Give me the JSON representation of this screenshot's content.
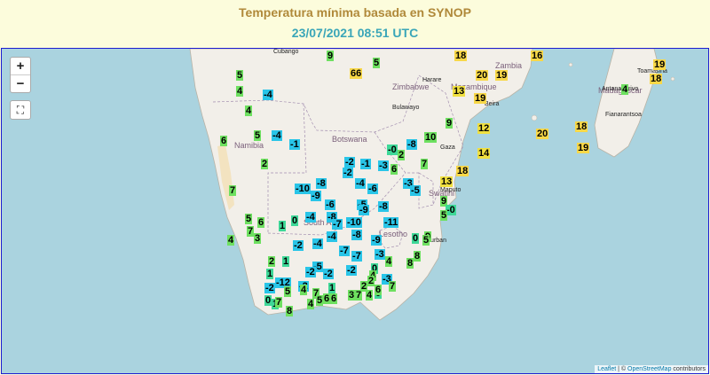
{
  "header": {
    "title": "Temperatura mínima basada en SYNOP",
    "datetime": "23/07/2021 08:51 UTC"
  },
  "controls": {
    "zoom_in": "+",
    "zoom_out": "−",
    "fullscreen": "⛶"
  },
  "attribution": {
    "leaflet": "Leaflet",
    "sep": " | © ",
    "osm": "OpenStreetMap",
    "suffix": " contributors"
  },
  "map_labels": {
    "countries": [
      "Namibia",
      "Botswana",
      "Zimbabwe",
      "South Afr",
      "Lesotho",
      "Swatini",
      "Madagascar",
      "Mozambique",
      "Zambia"
    ],
    "cities": [
      "Cubango",
      "Harare",
      "Bulawayo",
      "Beira",
      "Maputo",
      "Durban",
      "Gaza",
      "Toamasina",
      "Fianarantsoa",
      "Antananarivo"
    ]
  },
  "colors": {
    "cold": "#29c5e8",
    "cool": "#3ed898",
    "mild": "#6ee060",
    "warm": "#f0e040",
    "hot": "#f8d848"
  },
  "stations": [
    {
      "v": "9"
    },
    {
      "v": "5"
    },
    {
      "v": "66"
    },
    {
      "v": "18"
    },
    {
      "v": "16"
    },
    {
      "v": "19"
    },
    {
      "v": "20"
    },
    {
      "v": "19"
    },
    {
      "v": "18"
    },
    {
      "v": "5"
    },
    {
      "v": "4"
    },
    {
      "v": "-4"
    },
    {
      "v": "4"
    },
    {
      "v": "13"
    },
    {
      "v": "19"
    },
    {
      "v": "4"
    },
    {
      "v": "5"
    },
    {
      "v": "-4"
    },
    {
      "v": "-1"
    },
    {
      "v": "6"
    },
    {
      "v": "9"
    },
    {
      "v": "12"
    },
    {
      "v": "20"
    },
    {
      "v": "18"
    },
    {
      "v": "19"
    },
    {
      "v": "10"
    },
    {
      "v": "-8"
    },
    {
      "v": "-0"
    },
    {
      "v": "2"
    },
    {
      "v": "14"
    },
    {
      "v": "-2"
    },
    {
      "v": "-1"
    },
    {
      "v": "-3"
    },
    {
      "v": "6"
    },
    {
      "v": "7"
    },
    {
      "v": "18"
    },
    {
      "v": "2"
    },
    {
      "v": "-2"
    },
    {
      "v": "7"
    },
    {
      "v": "-10"
    },
    {
      "v": "-8"
    },
    {
      "v": "-9"
    },
    {
      "v": "-4"
    },
    {
      "v": "-6"
    },
    {
      "v": "-3"
    },
    {
      "v": "13"
    },
    {
      "v": "-5"
    },
    {
      "v": "9"
    },
    {
      "v": "-6"
    },
    {
      "v": "-5"
    },
    {
      "v": "-9"
    },
    {
      "v": "-8"
    },
    {
      "v": "-0"
    },
    {
      "v": "5"
    },
    {
      "v": "5"
    },
    {
      "v": "6"
    },
    {
      "v": "-4"
    },
    {
      "v": "-8"
    },
    {
      "v": "-7"
    },
    {
      "v": "0"
    },
    {
      "v": "1"
    },
    {
      "v": "-10"
    },
    {
      "v": "-11"
    },
    {
      "v": "4"
    },
    {
      "v": "7"
    },
    {
      "v": "3"
    },
    {
      "v": "-8"
    },
    {
      "v": "-4"
    },
    {
      "v": "-9"
    },
    {
      "v": "9"
    },
    {
      "v": "0"
    },
    {
      "v": "5"
    },
    {
      "v": "-2"
    },
    {
      "v": "-4"
    },
    {
      "v": "-7"
    },
    {
      "v": "-7"
    },
    {
      "v": "-3"
    },
    {
      "v": "8"
    },
    {
      "v": "2"
    },
    {
      "v": "1"
    },
    {
      "v": "-5"
    },
    {
      "v": "-2"
    },
    {
      "v": "-2"
    },
    {
      "v": "0"
    },
    {
      "v": "-2"
    },
    {
      "v": "4"
    },
    {
      "v": "8"
    },
    {
      "v": "4"
    },
    {
      "v": "-3"
    },
    {
      "v": "1"
    },
    {
      "v": "-12"
    },
    {
      "v": "-2"
    },
    {
      "v": "-2"
    },
    {
      "v": "5"
    },
    {
      "v": "4"
    },
    {
      "v": "7"
    },
    {
      "v": "2"
    },
    {
      "v": "0"
    },
    {
      "v": "2"
    },
    {
      "v": "1"
    },
    {
      "v": "3"
    },
    {
      "v": "4"
    },
    {
      "v": "6"
    },
    {
      "v": "7"
    },
    {
      "v": "0"
    },
    {
      "v": "1"
    },
    {
      "v": "4"
    },
    {
      "v": "5"
    },
    {
      "v": "6"
    },
    {
      "v": "6"
    },
    {
      "v": "7"
    },
    {
      "v": "7"
    },
    {
      "v": "8"
    }
  ]
}
